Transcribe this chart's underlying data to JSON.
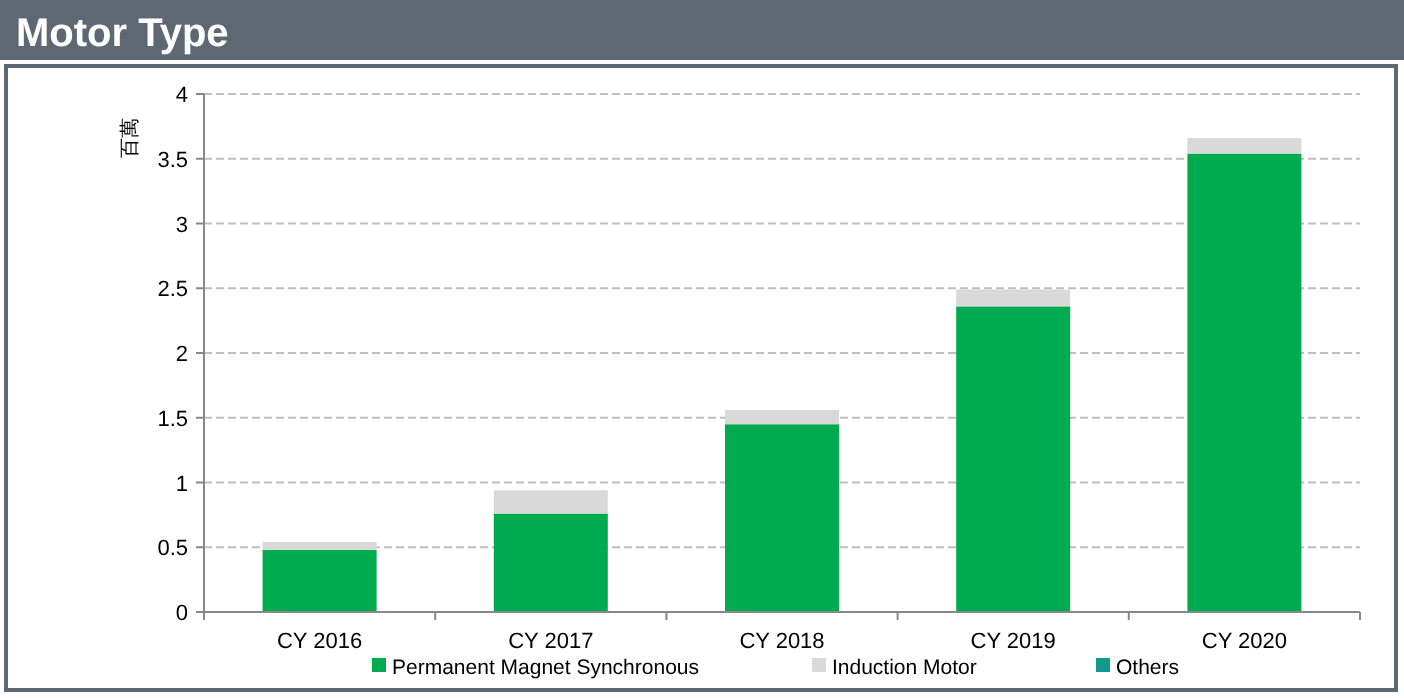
{
  "chart_data": {
    "type": "bar",
    "title": "Motor Type",
    "ylabel": "百萬",
    "stacked": true,
    "categories": [
      "CY 2016",
      "CY 2017",
      "CY 2018",
      "CY 2019",
      "CY 2020"
    ],
    "series": [
      {
        "name": "Permanent Magnet Synchronous",
        "color": "#00aa4f",
        "values": [
          0.48,
          0.76,
          1.45,
          2.36,
          3.54
        ]
      },
      {
        "name": "Induction Motor",
        "color": "#d9d9d9",
        "values": [
          0.06,
          0.18,
          0.11,
          0.13,
          0.12
        ]
      },
      {
        "name": "Others",
        "color": "#109a8e",
        "values": [
          0,
          0,
          0,
          0,
          0
        ]
      }
    ],
    "ylim": [
      0,
      4
    ],
    "yticks": [
      0,
      0.5,
      1,
      1.5,
      2,
      2.5,
      3,
      3.5,
      4
    ],
    "grid": "y",
    "legend": "bottom"
  }
}
